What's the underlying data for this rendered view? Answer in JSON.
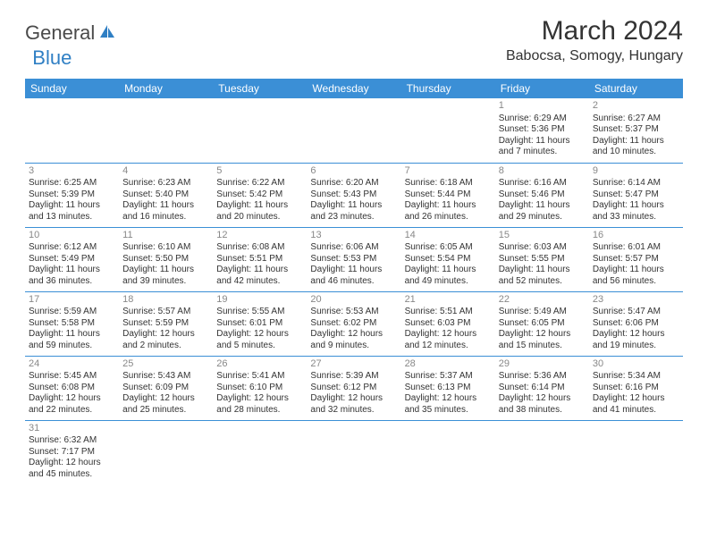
{
  "brand": {
    "part1": "General",
    "part2": "Blue"
  },
  "title": "March 2024",
  "location": "Babocsa, Somogy, Hungary",
  "colors": {
    "header_bg": "#3b8fd6",
    "header_fg": "#ffffff",
    "border": "#3b8fd6",
    "daynum": "#888888",
    "text": "#333333",
    "brand_gray": "#4a4a4a",
    "brand_blue": "#2f7fc4"
  },
  "weekdays": [
    "Sunday",
    "Monday",
    "Tuesday",
    "Wednesday",
    "Thursday",
    "Friday",
    "Saturday"
  ],
  "first_weekday_index": 5,
  "days": [
    {
      "n": 1,
      "sr": "6:29 AM",
      "ss": "5:36 PM",
      "dl": "11 hours and 7 minutes."
    },
    {
      "n": 2,
      "sr": "6:27 AM",
      "ss": "5:37 PM",
      "dl": "11 hours and 10 minutes."
    },
    {
      "n": 3,
      "sr": "6:25 AM",
      "ss": "5:39 PM",
      "dl": "11 hours and 13 minutes."
    },
    {
      "n": 4,
      "sr": "6:23 AM",
      "ss": "5:40 PM",
      "dl": "11 hours and 16 minutes."
    },
    {
      "n": 5,
      "sr": "6:22 AM",
      "ss": "5:42 PM",
      "dl": "11 hours and 20 minutes."
    },
    {
      "n": 6,
      "sr": "6:20 AM",
      "ss": "5:43 PM",
      "dl": "11 hours and 23 minutes."
    },
    {
      "n": 7,
      "sr": "6:18 AM",
      "ss": "5:44 PM",
      "dl": "11 hours and 26 minutes."
    },
    {
      "n": 8,
      "sr": "6:16 AM",
      "ss": "5:46 PM",
      "dl": "11 hours and 29 minutes."
    },
    {
      "n": 9,
      "sr": "6:14 AM",
      "ss": "5:47 PM",
      "dl": "11 hours and 33 minutes."
    },
    {
      "n": 10,
      "sr": "6:12 AM",
      "ss": "5:49 PM",
      "dl": "11 hours and 36 minutes."
    },
    {
      "n": 11,
      "sr": "6:10 AM",
      "ss": "5:50 PM",
      "dl": "11 hours and 39 minutes."
    },
    {
      "n": 12,
      "sr": "6:08 AM",
      "ss": "5:51 PM",
      "dl": "11 hours and 42 minutes."
    },
    {
      "n": 13,
      "sr": "6:06 AM",
      "ss": "5:53 PM",
      "dl": "11 hours and 46 minutes."
    },
    {
      "n": 14,
      "sr": "6:05 AM",
      "ss": "5:54 PM",
      "dl": "11 hours and 49 minutes."
    },
    {
      "n": 15,
      "sr": "6:03 AM",
      "ss": "5:55 PM",
      "dl": "11 hours and 52 minutes."
    },
    {
      "n": 16,
      "sr": "6:01 AM",
      "ss": "5:57 PM",
      "dl": "11 hours and 56 minutes."
    },
    {
      "n": 17,
      "sr": "5:59 AM",
      "ss": "5:58 PM",
      "dl": "11 hours and 59 minutes."
    },
    {
      "n": 18,
      "sr": "5:57 AM",
      "ss": "5:59 PM",
      "dl": "12 hours and 2 minutes."
    },
    {
      "n": 19,
      "sr": "5:55 AM",
      "ss": "6:01 PM",
      "dl": "12 hours and 5 minutes."
    },
    {
      "n": 20,
      "sr": "5:53 AM",
      "ss": "6:02 PM",
      "dl": "12 hours and 9 minutes."
    },
    {
      "n": 21,
      "sr": "5:51 AM",
      "ss": "6:03 PM",
      "dl": "12 hours and 12 minutes."
    },
    {
      "n": 22,
      "sr": "5:49 AM",
      "ss": "6:05 PM",
      "dl": "12 hours and 15 minutes."
    },
    {
      "n": 23,
      "sr": "5:47 AM",
      "ss": "6:06 PM",
      "dl": "12 hours and 19 minutes."
    },
    {
      "n": 24,
      "sr": "5:45 AM",
      "ss": "6:08 PM",
      "dl": "12 hours and 22 minutes."
    },
    {
      "n": 25,
      "sr": "5:43 AM",
      "ss": "6:09 PM",
      "dl": "12 hours and 25 minutes."
    },
    {
      "n": 26,
      "sr": "5:41 AM",
      "ss": "6:10 PM",
      "dl": "12 hours and 28 minutes."
    },
    {
      "n": 27,
      "sr": "5:39 AM",
      "ss": "6:12 PM",
      "dl": "12 hours and 32 minutes."
    },
    {
      "n": 28,
      "sr": "5:37 AM",
      "ss": "6:13 PM",
      "dl": "12 hours and 35 minutes."
    },
    {
      "n": 29,
      "sr": "5:36 AM",
      "ss": "6:14 PM",
      "dl": "12 hours and 38 minutes."
    },
    {
      "n": 30,
      "sr": "5:34 AM",
      "ss": "6:16 PM",
      "dl": "12 hours and 41 minutes."
    },
    {
      "n": 31,
      "sr": "6:32 AM",
      "ss": "7:17 PM",
      "dl": "12 hours and 45 minutes."
    }
  ],
  "labels": {
    "sunrise": "Sunrise: ",
    "sunset": "Sunset: ",
    "daylight": "Daylight: "
  }
}
